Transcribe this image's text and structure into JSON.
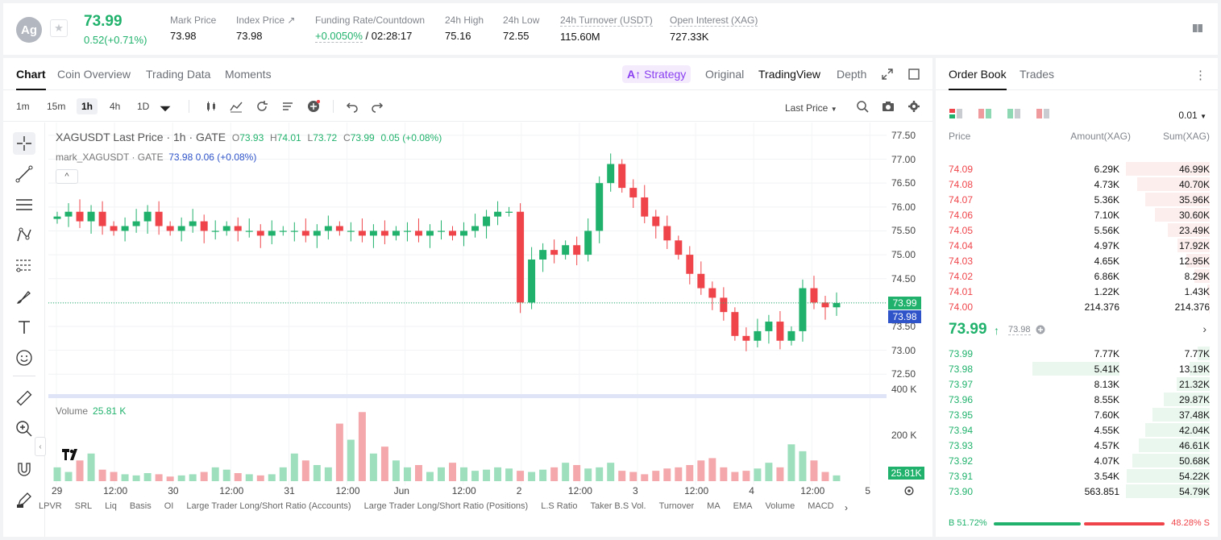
{
  "header": {
    "avatar": "Ag",
    "price": "73.99",
    "change": "0.52(+0.71%)",
    "stats": [
      {
        "label": "Mark Price",
        "value": "73.98"
      },
      {
        "label": "Index Price ↗",
        "value": "73.98"
      },
      {
        "label": "Funding Rate/Countdown",
        "value_green": "+0.0050%",
        "value": " / 02:28:17"
      },
      {
        "label": "24h High",
        "value": "75.16"
      },
      {
        "label": "24h Low",
        "value": "72.55"
      },
      {
        "label": "24h Turnover (USDT)",
        "value": "115.60M"
      },
      {
        "label": "Open Interest (XAG)",
        "value": "727.33K"
      }
    ]
  },
  "chart_tabs": [
    "Chart",
    "Coin Overview",
    "Trading Data",
    "Moments"
  ],
  "view_tabs": {
    "strategy": "Strategy",
    "original": "Original",
    "tradingview": "TradingView",
    "depth": "Depth"
  },
  "timeframes": [
    "1m",
    "15m",
    "1h",
    "4h",
    "1D"
  ],
  "active_timeframe": "1h",
  "last_price_select": "Last Price",
  "legend": {
    "title": "XAGUSDT Last Price · 1h · GATE",
    "o_label": "O",
    "o": "73.93",
    "h_label": "H",
    "h": "74.01",
    "l_label": "L",
    "l": "73.72",
    "c_label": "C",
    "c": "73.99",
    "chg": "0.05 (+0.08%)",
    "mark_title": "mark_XAGUSDT · GATE",
    "mark_val": "73.98 0.06 (+0.08%)",
    "volume_label": "Volume",
    "volume_val": "25.81 K"
  },
  "chart_data": {
    "type": "candlestick",
    "ylim": [
      72.2,
      77.6
    ],
    "yticks": [
      "77.50",
      "77.00",
      "76.50",
      "76.00",
      "75.50",
      "75.00",
      "74.50",
      "74.00",
      "73.50",
      "73.00",
      "72.50"
    ],
    "price_tags": {
      "last": "73.99",
      "mark": "73.98",
      "volume": "25.81K"
    },
    "volume_ticks": [
      "400 K",
      "200 K"
    ],
    "xticks": [
      "29",
      "12:00",
      "30",
      "12:00",
      "31",
      "12:00",
      "Jun",
      "12:00",
      "2",
      "12:00",
      "3",
      "12:00",
      "4",
      "12:00",
      "5"
    ],
    "close_series": [
      75.8,
      75.9,
      75.7,
      75.9,
      75.6,
      75.5,
      75.6,
      75.7,
      75.9,
      75.6,
      75.5,
      75.6,
      75.7,
      75.5,
      75.5,
      75.6,
      75.5,
      75.5,
      75.4,
      75.5,
      75.5,
      75.5,
      75.4,
      75.5,
      75.6,
      75.5,
      75.5,
      75.4,
      75.5,
      75.4,
      75.5,
      75.5,
      75.4,
      75.5,
      75.5,
      75.4,
      75.5,
      75.6,
      75.8,
      75.9,
      75.9,
      74.0,
      74.9,
      75.1,
      75.0,
      75.2,
      75.0,
      75.5,
      76.5,
      76.9,
      76.4,
      76.2,
      75.8,
      75.6,
      75.3,
      75.0,
      74.6,
      74.3,
      74.1,
      73.8,
      73.3,
      73.2,
      73.4,
      73.6,
      73.2,
      73.4,
      74.3,
      74.0,
      73.9,
      73.99
    ],
    "volume_series": [
      60,
      40,
      90,
      120,
      50,
      40,
      30,
      25,
      35,
      30,
      20,
      25,
      30,
      40,
      60,
      50,
      35,
      30,
      25,
      30,
      60,
      120,
      90,
      70,
      60,
      250,
      180,
      300,
      120,
      150,
      90,
      60,
      70,
      40,
      60,
      80,
      60,
      45,
      50,
      60,
      55,
      45,
      40,
      50,
      60,
      80,
      70,
      55,
      60,
      80,
      45,
      40,
      30,
      45,
      55,
      60,
      70,
      90,
      100,
      60,
      40,
      45,
      55,
      80,
      60,
      160,
      130,
      90,
      40,
      25
    ]
  },
  "indicators": [
    "LPVR",
    "SRL",
    "Liq",
    "Basis",
    "OI",
    "Large Trader Long/Short Ratio (Accounts)",
    "Large Trader Long/Short Ratio (Positions)",
    "L.S Ratio",
    "Taker B.S Vol.",
    "Turnover",
    "MA",
    "EMA",
    "Volume",
    "MACD"
  ],
  "orderbook": {
    "tabs": [
      "Order Book",
      "Trades"
    ],
    "precision": "0.01",
    "headers": {
      "price": "Price",
      "amount": "Amount(XAG)",
      "sum": "Sum(XAG)"
    },
    "asks": [
      {
        "p": "74.09",
        "a": "6.29K",
        "s": "46.99K",
        "d": 1.0
      },
      {
        "p": "74.08",
        "a": "4.73K",
        "s": "40.70K",
        "d": 0.87
      },
      {
        "p": "74.07",
        "a": "5.36K",
        "s": "35.96K",
        "d": 0.77
      },
      {
        "p": "74.06",
        "a": "7.10K",
        "s": "30.60K",
        "d": 0.65
      },
      {
        "p": "74.05",
        "a": "5.56K",
        "s": "23.49K",
        "d": 0.5
      },
      {
        "p": "74.04",
        "a": "4.97K",
        "s": "17.92K",
        "d": 0.38
      },
      {
        "p": "74.03",
        "a": "4.65K",
        "s": "12.95K",
        "d": 0.28
      },
      {
        "p": "74.02",
        "a": "6.86K",
        "s": "8.29K",
        "d": 0.18
      },
      {
        "p": "74.01",
        "a": "1.22K",
        "s": "1.43K",
        "d": 0.03
      },
      {
        "p": "74.00",
        "a": "214.376",
        "s": "214.376",
        "d": 0.005
      }
    ],
    "mid_price": "73.99",
    "mid_arrow": "↑",
    "mid_mark": "73.98",
    "bids": [
      {
        "p": "73.99",
        "a": "7.77K",
        "s": "7.77K",
        "d": 0.14
      },
      {
        "p": "73.98",
        "a": "5.41K",
        "s": "13.19K",
        "d": 0.24
      },
      {
        "p": "73.97",
        "a": "8.13K",
        "s": "21.32K",
        "d": 0.39
      },
      {
        "p": "73.96",
        "a": "8.55K",
        "s": "29.87K",
        "d": 0.55
      },
      {
        "p": "73.95",
        "a": "7.60K",
        "s": "37.48K",
        "d": 0.68
      },
      {
        "p": "73.94",
        "a": "4.55K",
        "s": "42.04K",
        "d": 0.77
      },
      {
        "p": "73.93",
        "a": "4.57K",
        "s": "46.61K",
        "d": 0.85
      },
      {
        "p": "73.92",
        "a": "4.07K",
        "s": "50.68K",
        "d": 0.92
      },
      {
        "p": "73.91",
        "a": "3.54K",
        "s": "54.22K",
        "d": 0.99
      },
      {
        "p": "73.90",
        "a": "563.851",
        "s": "54.79K",
        "d": 1.0
      }
    ],
    "buy_label": "B 51.72%",
    "sell_label": "48.28% S"
  },
  "colors": {
    "green": "#20b26c",
    "red": "#ef454a",
    "blue": "#2f54c9",
    "purple": "#8a3ff0"
  }
}
